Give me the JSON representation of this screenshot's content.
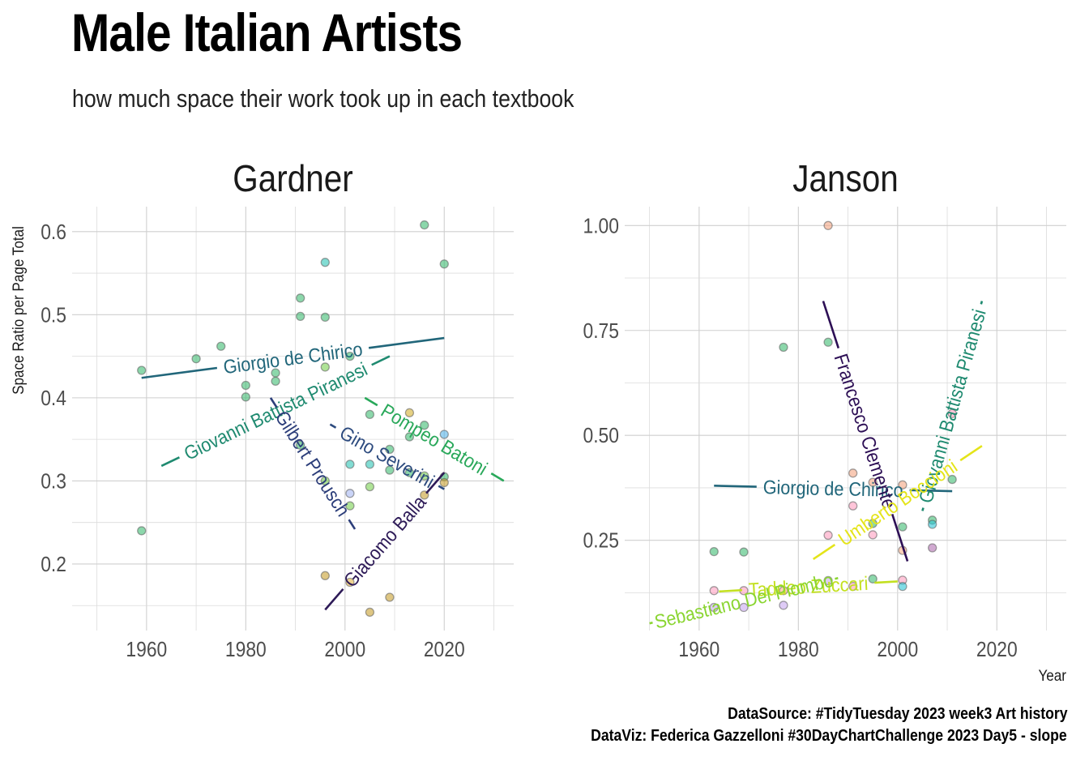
{
  "title": "Male Italian Artists",
  "subtitle": "how much space their work took up in each textbook",
  "caption": {
    "line1": "DataSource: #TidyTuesday 2023 week3 Art history",
    "line2": "DataViz: Federica Gazzelloni #30DayChartChallenge 2023 Day5 - slope"
  },
  "chart_data": {
    "type": "scatter",
    "xlabel": "Year",
    "ylabel": "Space Ratio per Page Total",
    "legend": "none",
    "grid": true,
    "panels": [
      {
        "name": "Gardner",
        "xlim": [
          1945,
          2034
        ],
        "ylim": [
          0.12,
          0.63
        ],
        "x_ticks": [
          1960,
          1980,
          2000,
          2020
        ],
        "y_ticks": [
          0.2,
          0.3,
          0.4,
          0.5,
          0.6
        ],
        "y_tick_labels": [
          "0.2",
          "0.3",
          "0.4",
          "0.5",
          "0.6"
        ],
        "points": [
          {
            "x": 1959,
            "y": 0.433,
            "color": "#3fbc73"
          },
          {
            "x": 1959,
            "y": 0.24,
            "color": "#3fbc73"
          },
          {
            "x": 1970,
            "y": 0.447,
            "color": "#3fbc73"
          },
          {
            "x": 1975,
            "y": 0.462,
            "color": "#3fbc73"
          },
          {
            "x": 1980,
            "y": 0.415,
            "color": "#3fbc73"
          },
          {
            "x": 1980,
            "y": 0.401,
            "color": "#3fbc73"
          },
          {
            "x": 1986,
            "y": 0.43,
            "color": "#3fbc73"
          },
          {
            "x": 1986,
            "y": 0.42,
            "color": "#3fbc73"
          },
          {
            "x": 1991,
            "y": 0.52,
            "color": "#3fbc73"
          },
          {
            "x": 1991,
            "y": 0.498,
            "color": "#3fbc73"
          },
          {
            "x": 1991,
            "y": 0.343,
            "color": "#3fbc73"
          },
          {
            "x": 1996,
            "y": 0.563,
            "color": "#2ec4b6"
          },
          {
            "x": 1996,
            "y": 0.497,
            "color": "#3fbc73"
          },
          {
            "x": 1996,
            "y": 0.437,
            "color": "#7ad151"
          },
          {
            "x": 1996,
            "y": 0.3,
            "color": "#7ad151"
          },
          {
            "x": 1996,
            "y": 0.186,
            "color": "#c8a030"
          },
          {
            "x": 2001,
            "y": 0.45,
            "color": "#3fbc73"
          },
          {
            "x": 2001,
            "y": 0.32,
            "color": "#2ec4b6"
          },
          {
            "x": 2001,
            "y": 0.285,
            "color": "#a6b8f2"
          },
          {
            "x": 2001,
            "y": 0.27,
            "color": "#7ad151"
          },
          {
            "x": 2001,
            "y": 0.178,
            "color": "#e6b84a"
          },
          {
            "x": 2005,
            "y": 0.38,
            "color": "#3fbc73"
          },
          {
            "x": 2005,
            "y": 0.32,
            "color": "#2ec4b6"
          },
          {
            "x": 2005,
            "y": 0.293,
            "color": "#7ad151"
          },
          {
            "x": 2005,
            "y": 0.142,
            "color": "#c8a030"
          },
          {
            "x": 2009,
            "y": 0.338,
            "color": "#3fbc73"
          },
          {
            "x": 2009,
            "y": 0.313,
            "color": "#3fbc73"
          },
          {
            "x": 2009,
            "y": 0.16,
            "color": "#c8a030"
          },
          {
            "x": 2013,
            "y": 0.382,
            "color": "#d4b030"
          },
          {
            "x": 2013,
            "y": 0.353,
            "color": "#3fbc73"
          },
          {
            "x": 2013,
            "y": 0.31,
            "color": "#3fbc73"
          },
          {
            "x": 2016,
            "y": 0.608,
            "color": "#3fbc73"
          },
          {
            "x": 2016,
            "y": 0.367,
            "color": "#3fbc73"
          },
          {
            "x": 2016,
            "y": 0.306,
            "color": "#7ad151"
          },
          {
            "x": 2016,
            "y": 0.283,
            "color": "#c8a030"
          },
          {
            "x": 2020,
            "y": 0.561,
            "color": "#3fbc73"
          },
          {
            "x": 2020,
            "y": 0.356,
            "color": "#56b4e9"
          },
          {
            "x": 2020,
            "y": 0.305,
            "color": "#3fbc73"
          },
          {
            "x": 2020,
            "y": 0.298,
            "color": "#c8a030"
          }
        ],
        "slopes": [
          {
            "label": "Giorgio de Chirico",
            "color": "#21667a",
            "x1": 1959,
            "y1": 0.424,
            "x2": 2020,
            "y2": 0.472
          },
          {
            "label": "Giovanni Battista Piranesi",
            "color": "#1f8a70",
            "x1": 1963,
            "y1": 0.318,
            "x2": 2009,
            "y2": 0.45
          },
          {
            "label": "Gilbert Prousch",
            "color": "#2c3e7a",
            "x1": 1985,
            "y1": 0.4,
            "x2": 2002,
            "y2": 0.242
          },
          {
            "label": "Gino Severini",
            "color": "#2c4a7e",
            "x1": 1997,
            "y1": 0.368,
            "x2": 2020,
            "y2": 0.29
          },
          {
            "label": "Pompeo Batoni",
            "color": "#29a85a",
            "x1": 2004,
            "y1": 0.4,
            "x2": 2032,
            "y2": 0.3
          },
          {
            "label": "Giacomo Balla",
            "color": "#2d1a57",
            "x1": 1996,
            "y1": 0.145,
            "x2": 2020,
            "y2": 0.31
          }
        ]
      },
      {
        "name": "Janson",
        "xlim": [
          1945,
          2034
        ],
        "ylim": [
          0.035,
          1.045
        ],
        "x_ticks": [
          1960,
          1980,
          2000,
          2020
        ],
        "y_ticks": [
          0.25,
          0.5,
          0.75,
          1.0
        ],
        "y_tick_labels": [
          "0.25",
          "0.50",
          "0.75",
          "1.00"
        ],
        "points": [
          {
            "x": 1963,
            "y": 0.223,
            "color": "#3fbc73"
          },
          {
            "x": 1963,
            "y": 0.13,
            "color": "#ff9ec0"
          },
          {
            "x": 1963,
            "y": 0.09,
            "color": "#c8a8f0"
          },
          {
            "x": 1969,
            "y": 0.222,
            "color": "#3fbc73"
          },
          {
            "x": 1969,
            "y": 0.13,
            "color": "#ff9ec0"
          },
          {
            "x": 1969,
            "y": 0.09,
            "color": "#c8a8f0"
          },
          {
            "x": 1977,
            "y": 0.71,
            "color": "#3fbc73"
          },
          {
            "x": 1977,
            "y": 0.13,
            "color": "#ffb08a"
          },
          {
            "x": 1977,
            "y": 0.095,
            "color": "#c8a8f0"
          },
          {
            "x": 1986,
            "y": 1.0,
            "color": "#f4a582"
          },
          {
            "x": 1986,
            "y": 0.722,
            "color": "#3fbc73"
          },
          {
            "x": 1986,
            "y": 0.262,
            "color": "#ff9ec0"
          },
          {
            "x": 1986,
            "y": 0.154,
            "color": "#c8a8f0"
          },
          {
            "x": 1991,
            "y": 0.41,
            "color": "#f4a582"
          },
          {
            "x": 1991,
            "y": 0.332,
            "color": "#ff9ec0"
          },
          {
            "x": 1991,
            "y": 0.14,
            "color": "#ff9ec0"
          },
          {
            "x": 1995,
            "y": 0.388,
            "color": "#f4a582"
          },
          {
            "x": 1995,
            "y": 0.29,
            "color": "#3fbc73"
          },
          {
            "x": 1995,
            "y": 0.263,
            "color": "#ff9ec0"
          },
          {
            "x": 1995,
            "y": 0.158,
            "color": "#3fbc73"
          },
          {
            "x": 2001,
            "y": 0.382,
            "color": "#f4a582"
          },
          {
            "x": 2001,
            "y": 0.282,
            "color": "#3fbc73"
          },
          {
            "x": 2001,
            "y": 0.226,
            "color": "#ffb08a"
          },
          {
            "x": 2001,
            "y": 0.155,
            "color": "#ff9ec0"
          },
          {
            "x": 2001,
            "y": 0.14,
            "color": "#2ec4d6"
          },
          {
            "x": 2007,
            "y": 0.298,
            "color": "#3fbc73"
          },
          {
            "x": 2007,
            "y": 0.288,
            "color": "#2ec4d6"
          },
          {
            "x": 2007,
            "y": 0.232,
            "color": "#b070b0"
          },
          {
            "x": 2011,
            "y": 0.552,
            "color": "#ff9ec0"
          },
          {
            "x": 2011,
            "y": 0.395,
            "color": "#3fbc73"
          }
        ],
        "slopes": [
          {
            "label": "Giorgio de Chirico",
            "color": "#21667a",
            "x1": 1963,
            "y1": 0.38,
            "x2": 2011,
            "y2": 0.367
          },
          {
            "label": "Francesco Clemente",
            "color": "#2d0f55",
            "x1": 1985,
            "y1": 0.82,
            "x2": 2002,
            "y2": 0.2
          },
          {
            "label": "Giovanni Battista Piranesi",
            "color": "#1f8a70",
            "x1": 2005,
            "y1": 0.32,
            "x2": 2017,
            "y2": 0.82
          },
          {
            "label": "Umberto Boccioni",
            "color": "#e4e419",
            "x1": 1983,
            "y1": 0.205,
            "x2": 2017,
            "y2": 0.475
          },
          {
            "label": "Taddeo Zuccari",
            "color": "#c3e020",
            "x1": 1964,
            "y1": 0.128,
            "x2": 2000,
            "y2": 0.152
          },
          {
            "label": "Sebastiano Del Piombo",
            "color": "#8ad531",
            "x1": 1950,
            "y1": 0.052,
            "x2": 1988,
            "y2": 0.16
          }
        ]
      }
    ]
  }
}
